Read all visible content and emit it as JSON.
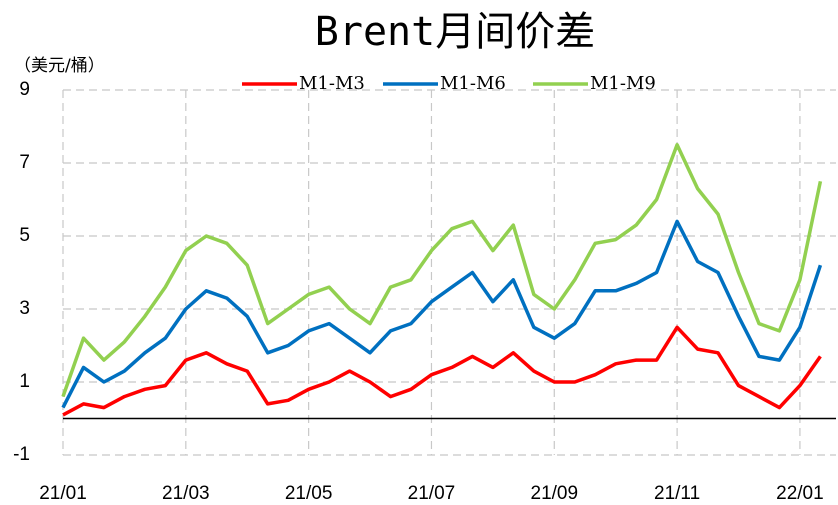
{
  "chart_data": {
    "type": "line",
    "title": "Brent月间价差",
    "y_axis_label": "（美元/桶）",
    "categories": [
      "21/01",
      null,
      null,
      null,
      null,
      null,
      "21/03",
      null,
      null,
      null,
      null,
      null,
      "21/05",
      null,
      null,
      null,
      null,
      null,
      "21/07",
      null,
      null,
      null,
      null,
      null,
      "21/09",
      null,
      null,
      null,
      null,
      null,
      "21/11",
      null,
      null,
      null,
      null,
      null,
      "22/01",
      null
    ],
    "series": [
      {
        "name": "M1-M3",
        "color": "#ff0000",
        "values": [
          0.1,
          0.4,
          0.3,
          0.6,
          0.8,
          0.9,
          1.6,
          1.8,
          1.5,
          1.3,
          0.4,
          0.5,
          0.8,
          1.0,
          1.3,
          1.0,
          0.6,
          0.8,
          1.2,
          1.4,
          1.7,
          1.4,
          1.8,
          1.3,
          1.0,
          1.0,
          1.2,
          1.5,
          1.6,
          1.6,
          2.5,
          1.9,
          1.8,
          0.9,
          0.6,
          0.3,
          0.9,
          1.7
        ]
      },
      {
        "name": "M1-M6",
        "color": "#0070c0",
        "values": [
          0.3,
          1.4,
          1.0,
          1.3,
          1.8,
          2.2,
          3.0,
          3.5,
          3.3,
          2.8,
          1.8,
          2.0,
          2.4,
          2.6,
          2.2,
          1.8,
          2.4,
          2.6,
          3.2,
          3.6,
          4.0,
          3.2,
          3.8,
          2.5,
          2.2,
          2.6,
          3.5,
          3.5,
          3.7,
          4.0,
          5.4,
          4.3,
          4.0,
          2.8,
          1.7,
          1.6,
          2.5,
          4.2
        ]
      },
      {
        "name": "M1-M9",
        "color": "#92d050",
        "values": [
          0.6,
          2.2,
          1.6,
          2.1,
          2.8,
          3.6,
          4.6,
          5.0,
          4.8,
          4.2,
          2.6,
          3.0,
          3.4,
          3.6,
          3.0,
          2.6,
          3.6,
          3.8,
          4.6,
          5.2,
          5.4,
          4.6,
          5.3,
          3.4,
          3.0,
          3.8,
          4.8,
          4.9,
          5.3,
          6.0,
          7.5,
          6.3,
          5.6,
          4.0,
          2.6,
          2.4,
          3.8,
          6.5
        ]
      }
    ],
    "ylim": [
      -1,
      9
    ],
    "yticks": [
      -1,
      1,
      3,
      5,
      7,
      9
    ],
    "grid": true,
    "legend": "top"
  }
}
